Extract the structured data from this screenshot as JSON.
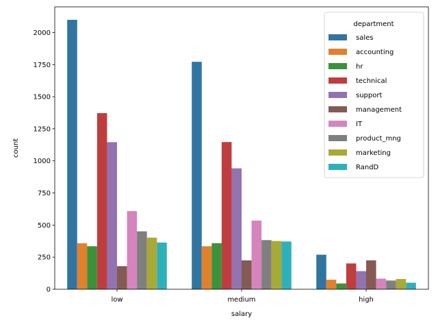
{
  "chart_data": {
    "type": "bar",
    "title": "",
    "xlabel": "salary",
    "ylabel": "count",
    "categories": [
      "low",
      "medium",
      "high"
    ],
    "ylim": [
      0,
      2200
    ],
    "yticks": [
      0,
      250,
      500,
      750,
      1000,
      1250,
      1500,
      1750,
      2000
    ],
    "grid": false,
    "legend": {
      "title": "department",
      "placement": "top-right"
    },
    "series": [
      {
        "name": "sales",
        "color": "#3274a1",
        "values": [
          2099,
          1772,
          269
        ]
      },
      {
        "name": "accounting",
        "color": "#e1812c",
        "values": [
          358,
          335,
          74
        ]
      },
      {
        "name": "hr",
        "color": "#3a923a",
        "values": [
          335,
          359,
          45
        ]
      },
      {
        "name": "technical",
        "color": "#c03d3e",
        "values": [
          1372,
          1147,
          201
        ]
      },
      {
        "name": "support",
        "color": "#9372b2",
        "values": [
          1146,
          942,
          141
        ]
      },
      {
        "name": "management",
        "color": "#845b53",
        "values": [
          180,
          225,
          225
        ]
      },
      {
        "name": "IT",
        "color": "#d684bd",
        "values": [
          609,
          535,
          83
        ]
      },
      {
        "name": "product_mng",
        "color": "#7f7f7f",
        "values": [
          451,
          383,
          68
        ]
      },
      {
        "name": "marketing",
        "color": "#a9aa35",
        "values": [
          402,
          376,
          80
        ]
      },
      {
        "name": "RandD",
        "color": "#2eb0bb",
        "values": [
          364,
          372,
          51
        ]
      }
    ]
  }
}
